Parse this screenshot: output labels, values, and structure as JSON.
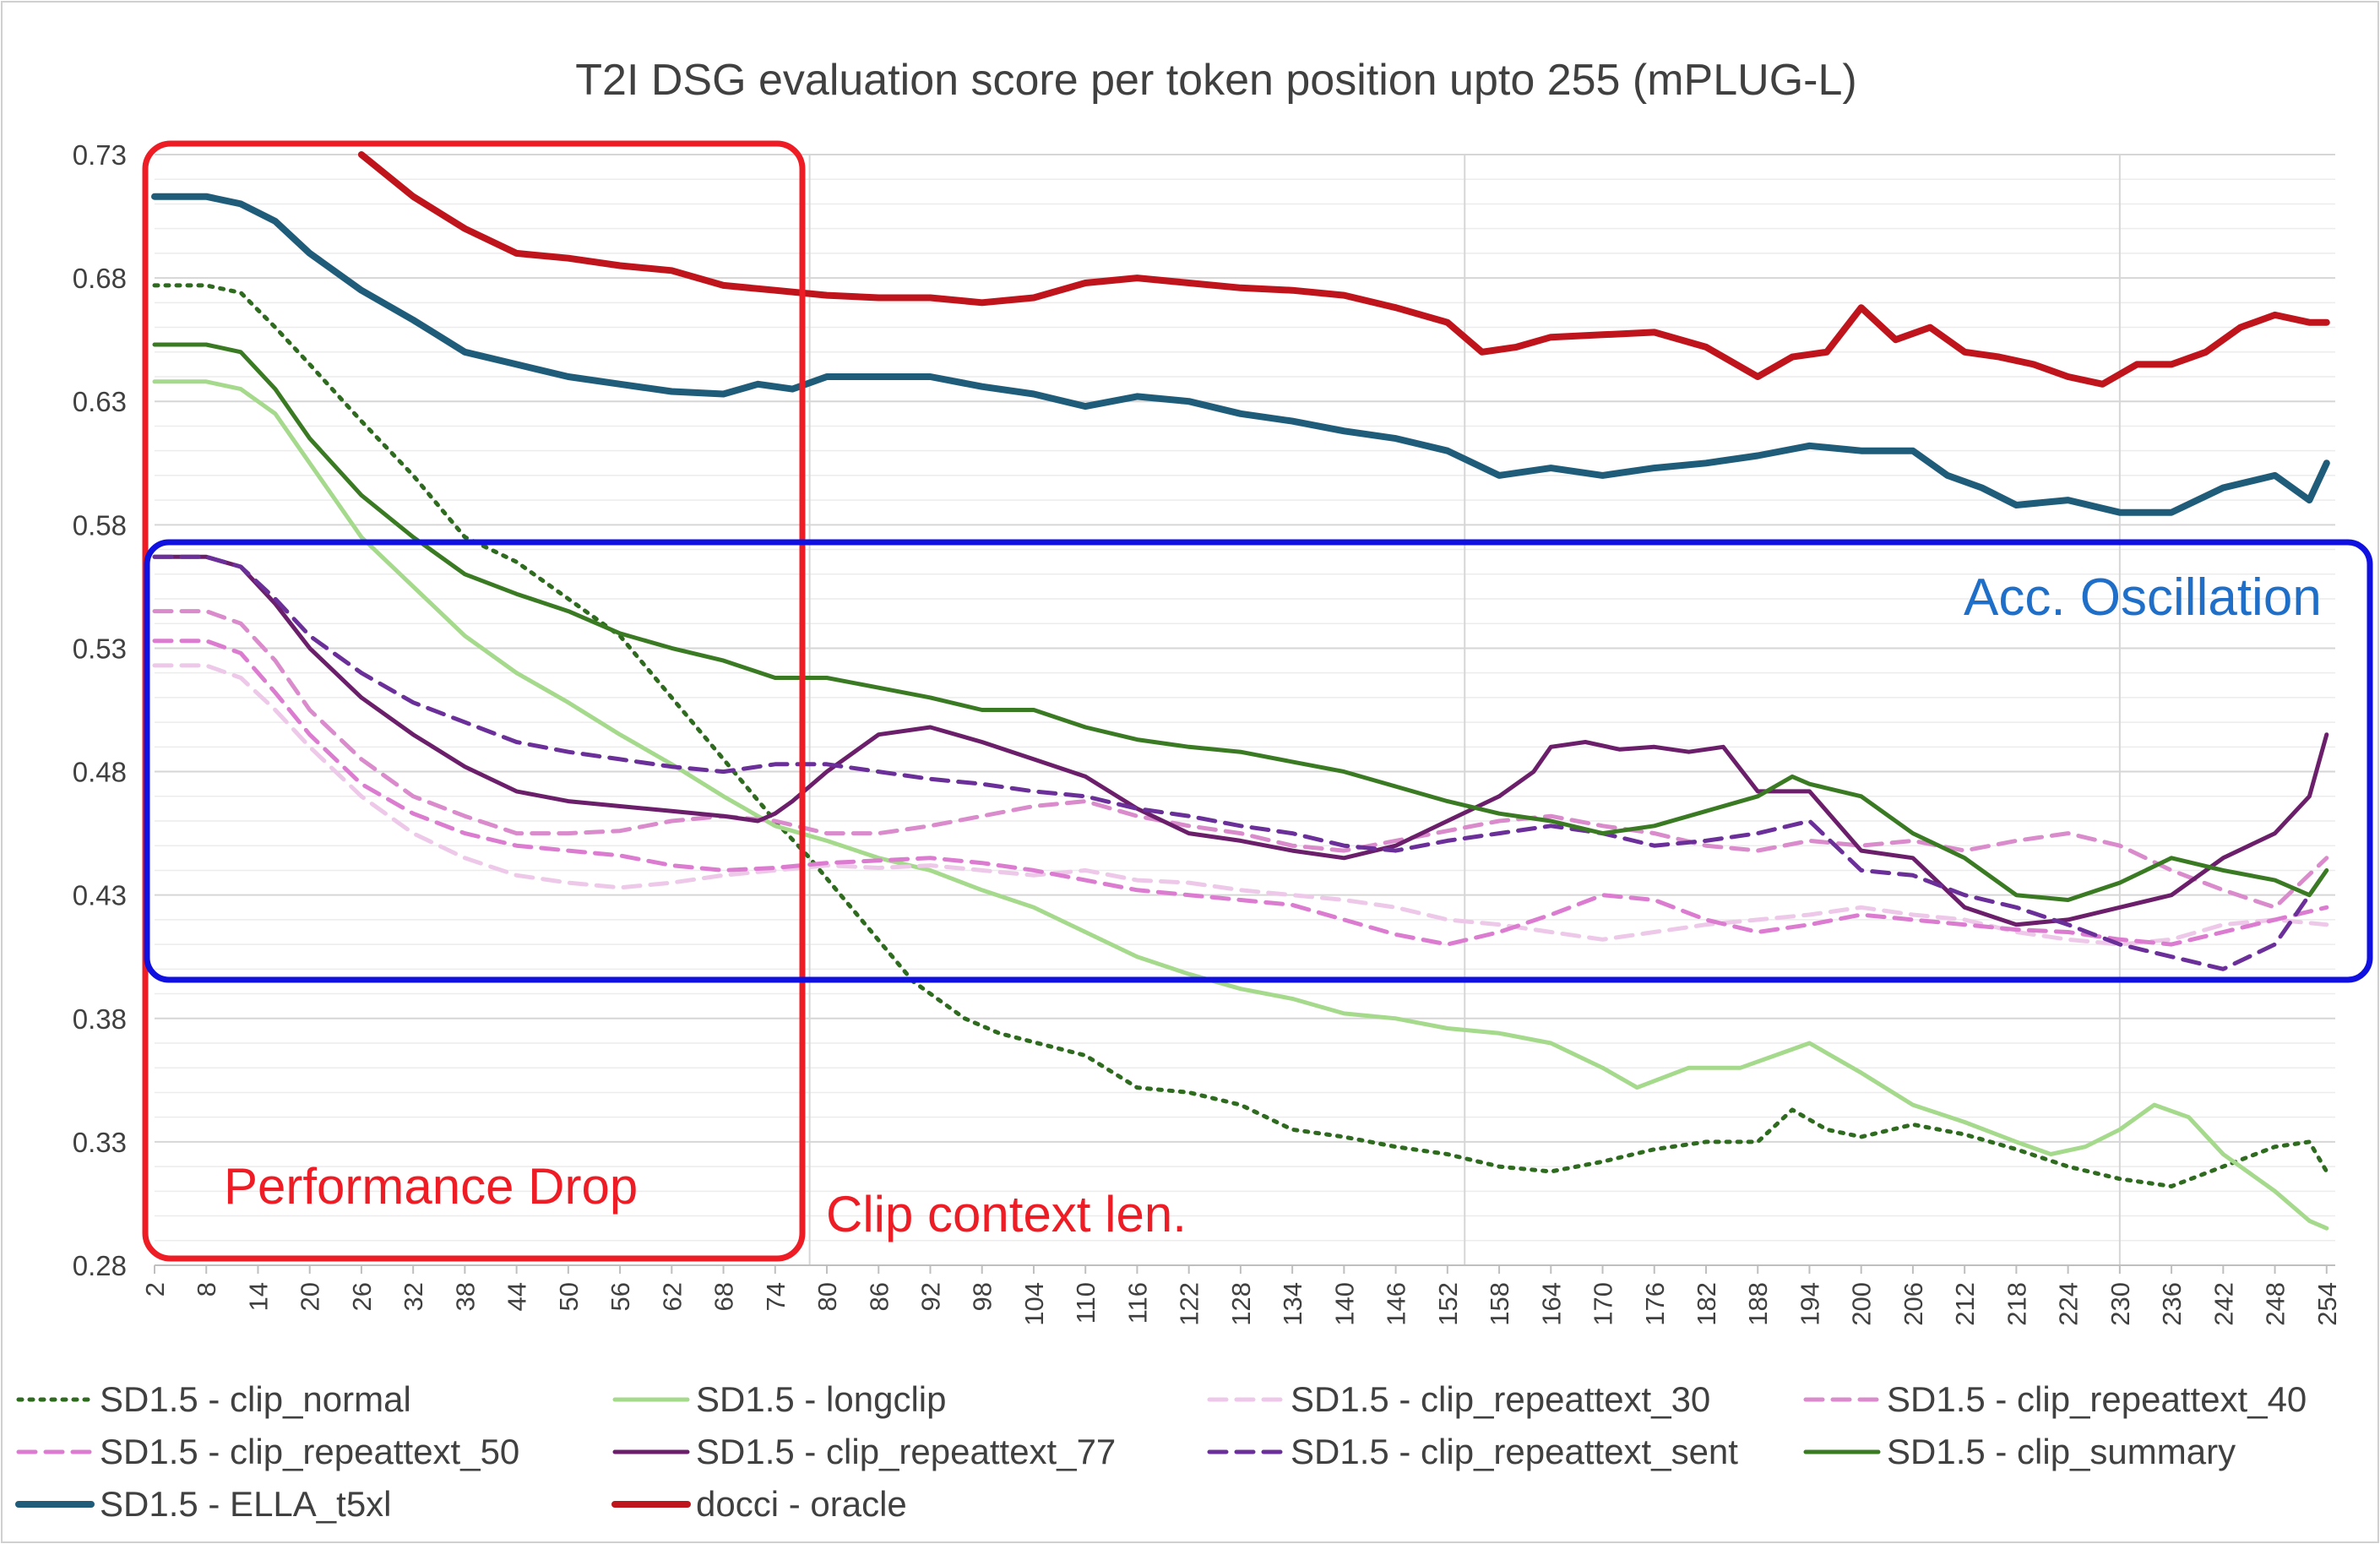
{
  "chart_data": {
    "type": "line",
    "title": "T2I DSG evaluation score per token position upto 255 (mPLUG-L)",
    "xlabel": "",
    "ylabel": "",
    "xlim": [
      2,
      255
    ],
    "ylim": [
      0.28,
      0.73
    ],
    "y_ticks": [
      "0.28",
      "0.33",
      "0.38",
      "0.43",
      "0.48",
      "0.53",
      "0.58",
      "0.63",
      "0.68",
      "0.73"
    ],
    "x_ticks": [
      "2",
      "8",
      "14",
      "20",
      "26",
      "32",
      "38",
      "44",
      "50",
      "56",
      "62",
      "68",
      "74",
      "80",
      "86",
      "92",
      "98",
      "104",
      "110",
      "116",
      "122",
      "128",
      "134",
      "140",
      "146",
      "152",
      "158",
      "164",
      "170",
      "176",
      "182",
      "188",
      "194",
      "200",
      "206",
      "212",
      "218",
      "224",
      "230",
      "236",
      "242",
      "248",
      "254"
    ],
    "minor_y_gridlines": true,
    "grid": true,
    "legend_position": "bottom",
    "series": [
      {
        "name": "SD1.5 - clip_normal",
        "color": "#2E6B1F",
        "dash": "dotted",
        "x": [
          2,
          8,
          12,
          16,
          20,
          26,
          32,
          38,
          44,
          50,
          56,
          62,
          68,
          74,
          78,
          84,
          90,
          96,
          100,
          110,
          116,
          122,
          128,
          134,
          140,
          146,
          152,
          158,
          164,
          170,
          176,
          182,
          188,
          192,
          196,
          200,
          206,
          212,
          218,
          224,
          230,
          236,
          242,
          248,
          252,
          254
        ],
        "y": [
          0.677,
          0.677,
          0.674,
          0.66,
          0.645,
          0.622,
          0.6,
          0.575,
          0.565,
          0.55,
          0.535,
          0.51,
          0.485,
          0.46,
          0.445,
          0.42,
          0.395,
          0.38,
          0.374,
          0.365,
          0.352,
          0.35,
          0.345,
          0.335,
          0.332,
          0.328,
          0.325,
          0.32,
          0.318,
          0.322,
          0.327,
          0.33,
          0.33,
          0.343,
          0.335,
          0.332,
          0.337,
          0.333,
          0.327,
          0.32,
          0.315,
          0.312,
          0.32,
          0.328,
          0.33,
          0.318
        ]
      },
      {
        "name": "SD1.5 - longclip",
        "color": "#A5D98B",
        "dash": "solid",
        "x": [
          2,
          8,
          12,
          16,
          20,
          26,
          32,
          38,
          44,
          50,
          56,
          62,
          68,
          74,
          80,
          86,
          92,
          98,
          104,
          110,
          116,
          122,
          128,
          134,
          140,
          146,
          152,
          158,
          164,
          170,
          174,
          180,
          186,
          190,
          194,
          200,
          206,
          212,
          218,
          222,
          226,
          230,
          234,
          238,
          242,
          248,
          252,
          254
        ],
        "y": [
          0.638,
          0.638,
          0.635,
          0.625,
          0.605,
          0.575,
          0.555,
          0.535,
          0.52,
          0.508,
          0.495,
          0.483,
          0.47,
          0.458,
          0.452,
          0.445,
          0.44,
          0.432,
          0.425,
          0.415,
          0.405,
          0.398,
          0.392,
          0.388,
          0.382,
          0.38,
          0.376,
          0.374,
          0.37,
          0.36,
          0.352,
          0.36,
          0.36,
          0.365,
          0.37,
          0.358,
          0.345,
          0.338,
          0.33,
          0.325,
          0.328,
          0.335,
          0.345,
          0.34,
          0.325,
          0.31,
          0.298,
          0.295
        ]
      },
      {
        "name": "SD1.5 - clip_repeattext_30",
        "color": "#EDC8E8",
        "dash": "dashed",
        "x": [
          2,
          8,
          12,
          16,
          20,
          26,
          32,
          38,
          44,
          50,
          56,
          62,
          68,
          74,
          80,
          86,
          92,
          98,
          104,
          110,
          116,
          122,
          128,
          134,
          140,
          146,
          152,
          158,
          164,
          170,
          176,
          182,
          188,
          194,
          200,
          206,
          212,
          218,
          224,
          230,
          236,
          242,
          248,
          254
        ],
        "y": [
          0.523,
          0.523,
          0.518,
          0.505,
          0.49,
          0.47,
          0.455,
          0.445,
          0.438,
          0.435,
          0.433,
          0.435,
          0.438,
          0.44,
          0.442,
          0.441,
          0.442,
          0.44,
          0.438,
          0.44,
          0.436,
          0.435,
          0.432,
          0.43,
          0.428,
          0.425,
          0.42,
          0.418,
          0.415,
          0.412,
          0.415,
          0.418,
          0.42,
          0.422,
          0.425,
          0.422,
          0.42,
          0.415,
          0.412,
          0.41,
          0.412,
          0.418,
          0.42,
          0.418
        ]
      },
      {
        "name": "SD1.5 - clip_repeattext_40",
        "color": "#D98BCB",
        "dash": "dashed",
        "x": [
          2,
          8,
          12,
          16,
          20,
          26,
          32,
          38,
          44,
          50,
          56,
          62,
          68,
          74,
          80,
          86,
          92,
          98,
          104,
          110,
          116,
          122,
          128,
          134,
          140,
          146,
          152,
          158,
          164,
          170,
          176,
          182,
          188,
          194,
          200,
          206,
          212,
          218,
          224,
          230,
          236,
          242,
          248,
          254
        ],
        "y": [
          0.545,
          0.545,
          0.54,
          0.525,
          0.505,
          0.485,
          0.47,
          0.462,
          0.455,
          0.455,
          0.456,
          0.46,
          0.462,
          0.46,
          0.455,
          0.455,
          0.458,
          0.462,
          0.466,
          0.468,
          0.462,
          0.458,
          0.455,
          0.45,
          0.448,
          0.452,
          0.456,
          0.46,
          0.462,
          0.458,
          0.455,
          0.45,
          0.448,
          0.452,
          0.45,
          0.452,
          0.448,
          0.452,
          0.455,
          0.45,
          0.44,
          0.432,
          0.425,
          0.445
        ]
      },
      {
        "name": "SD1.5 - clip_repeattext_50",
        "color": "#DC7CD0",
        "dash": "dashed",
        "x": [
          2,
          8,
          12,
          16,
          20,
          26,
          32,
          38,
          44,
          50,
          56,
          62,
          68,
          74,
          80,
          86,
          92,
          98,
          104,
          110,
          116,
          122,
          128,
          134,
          140,
          146,
          152,
          158,
          164,
          170,
          176,
          182,
          188,
          194,
          200,
          206,
          212,
          218,
          224,
          230,
          236,
          242,
          248,
          254
        ],
        "y": [
          0.533,
          0.533,
          0.528,
          0.512,
          0.495,
          0.475,
          0.463,
          0.455,
          0.45,
          0.448,
          0.446,
          0.442,
          0.44,
          0.441,
          0.443,
          0.444,
          0.445,
          0.443,
          0.44,
          0.436,
          0.432,
          0.43,
          0.428,
          0.426,
          0.42,
          0.414,
          0.41,
          0.415,
          0.422,
          0.43,
          0.428,
          0.42,
          0.415,
          0.418,
          0.422,
          0.42,
          0.418,
          0.416,
          0.415,
          0.412,
          0.41,
          0.415,
          0.42,
          0.425
        ]
      },
      {
        "name": "SD1.5 - clip_repeattext_77",
        "color": "#6B1F6B",
        "dash": "solid",
        "x": [
          2,
          8,
          12,
          16,
          20,
          26,
          32,
          38,
          44,
          50,
          56,
          62,
          68,
          72,
          74,
          76,
          80,
          86,
          92,
          98,
          104,
          110,
          116,
          122,
          128,
          134,
          140,
          146,
          152,
          158,
          162,
          164,
          168,
          172,
          176,
          180,
          184,
          188,
          194,
          200,
          206,
          212,
          218,
          224,
          230,
          236,
          242,
          248,
          252,
          254
        ],
        "y": [
          0.567,
          0.567,
          0.563,
          0.548,
          0.53,
          0.51,
          0.495,
          0.482,
          0.472,
          0.468,
          0.466,
          0.464,
          0.462,
          0.46,
          0.463,
          0.468,
          0.48,
          0.495,
          0.498,
          0.492,
          0.485,
          0.478,
          0.465,
          0.455,
          0.452,
          0.448,
          0.445,
          0.45,
          0.46,
          0.47,
          0.48,
          0.49,
          0.492,
          0.489,
          0.49,
          0.488,
          0.49,
          0.472,
          0.472,
          0.448,
          0.445,
          0.425,
          0.418,
          0.42,
          0.425,
          0.43,
          0.445,
          0.455,
          0.47,
          0.495
        ]
      },
      {
        "name": "SD1.5 - clip_repeattext_sent",
        "color": "#6B2F9A",
        "dash": "dashed",
        "x": [
          2,
          8,
          12,
          16,
          20,
          26,
          32,
          38,
          44,
          50,
          56,
          62,
          68,
          74,
          80,
          86,
          92,
          98,
          104,
          110,
          116,
          122,
          128,
          134,
          140,
          146,
          152,
          158,
          164,
          170,
          176,
          182,
          188,
          194,
          200,
          206,
          212,
          218,
          224,
          230,
          236,
          242,
          248,
          254
        ],
        "y": [
          0.567,
          0.567,
          0.563,
          0.55,
          0.535,
          0.52,
          0.508,
          0.5,
          0.492,
          0.488,
          0.485,
          0.482,
          0.48,
          0.483,
          0.483,
          0.48,
          0.477,
          0.475,
          0.472,
          0.47,
          0.465,
          0.462,
          0.458,
          0.455,
          0.45,
          0.448,
          0.452,
          0.455,
          0.458,
          0.455,
          0.45,
          0.452,
          0.455,
          0.46,
          0.44,
          0.438,
          0.43,
          0.425,
          0.418,
          0.41,
          0.405,
          0.4,
          0.41,
          0.44
        ]
      },
      {
        "name": "SD1.5 - clip_summary",
        "color": "#3A7A23",
        "dash": "solid",
        "x": [
          2,
          8,
          12,
          16,
          20,
          26,
          32,
          38,
          44,
          50,
          56,
          62,
          68,
          74,
          80,
          86,
          92,
          98,
          104,
          110,
          116,
          122,
          128,
          134,
          140,
          146,
          152,
          158,
          164,
          170,
          176,
          182,
          188,
          192,
          194,
          200,
          206,
          212,
          218,
          224,
          230,
          236,
          242,
          248,
          252,
          254
        ],
        "y": [
          0.653,
          0.653,
          0.65,
          0.635,
          0.615,
          0.592,
          0.575,
          0.56,
          0.552,
          0.545,
          0.536,
          0.53,
          0.525,
          0.518,
          0.518,
          0.514,
          0.51,
          0.505,
          0.505,
          0.498,
          0.493,
          0.49,
          0.488,
          0.484,
          0.48,
          0.474,
          0.468,
          0.463,
          0.46,
          0.455,
          0.458,
          0.464,
          0.47,
          0.478,
          0.475,
          0.47,
          0.455,
          0.445,
          0.43,
          0.428,
          0.435,
          0.445,
          0.44,
          0.436,
          0.43,
          0.44
        ]
      },
      {
        "name": "SD1.5 - ELLA_t5xl",
        "color": "#1F5C7A",
        "dash": "solid",
        "x": [
          2,
          8,
          12,
          16,
          20,
          26,
          32,
          38,
          44,
          50,
          56,
          62,
          68,
          72,
          76,
          80,
          86,
          92,
          98,
          104,
          110,
          116,
          122,
          128,
          134,
          140,
          146,
          152,
          158,
          164,
          170,
          176,
          182,
          188,
          194,
          200,
          206,
          210,
          214,
          218,
          224,
          230,
          236,
          242,
          248,
          252,
          254
        ],
        "y": [
          0.713,
          0.713,
          0.71,
          0.703,
          0.69,
          0.675,
          0.663,
          0.65,
          0.645,
          0.64,
          0.637,
          0.634,
          0.633,
          0.637,
          0.635,
          0.64,
          0.64,
          0.64,
          0.636,
          0.633,
          0.628,
          0.632,
          0.63,
          0.625,
          0.622,
          0.618,
          0.615,
          0.61,
          0.6,
          0.603,
          0.6,
          0.603,
          0.605,
          0.608,
          0.612,
          0.61,
          0.61,
          0.6,
          0.595,
          0.588,
          0.59,
          0.585,
          0.585,
          0.595,
          0.6,
          0.59,
          0.605
        ]
      },
      {
        "name": "docci - oracle",
        "color": "#C0141C",
        "dash": "solid",
        "x": [
          26,
          32,
          38,
          44,
          50,
          56,
          62,
          68,
          74,
          80,
          86,
          92,
          98,
          104,
          110,
          116,
          122,
          128,
          134,
          140,
          146,
          152,
          156,
          160,
          164,
          170,
          176,
          182,
          188,
          192,
          196,
          200,
          204,
          208,
          212,
          216,
          220,
          224,
          228,
          232,
          236,
          240,
          244,
          248,
          252,
          254
        ],
        "y": [
          0.73,
          0.713,
          0.7,
          0.69,
          0.688,
          0.685,
          0.683,
          0.677,
          0.675,
          0.673,
          0.672,
          0.672,
          0.67,
          0.672,
          0.678,
          0.68,
          0.678,
          0.676,
          0.675,
          0.673,
          0.668,
          0.662,
          0.65,
          0.652,
          0.656,
          0.657,
          0.658,
          0.652,
          0.64,
          0.648,
          0.65,
          0.668,
          0.655,
          0.66,
          0.65,
          0.648,
          0.645,
          0.64,
          0.637,
          0.645,
          0.645,
          0.65,
          0.66,
          0.665,
          0.662,
          0.662
        ]
      }
    ],
    "annotations": [
      {
        "text": "Performance Drop",
        "color": "#EE1C24"
      },
      {
        "text": "Clip context len.",
        "color": "#EE1C24"
      },
      {
        "text": "Acc. Oscillation",
        "color": "#1F6FC9"
      }
    ]
  }
}
